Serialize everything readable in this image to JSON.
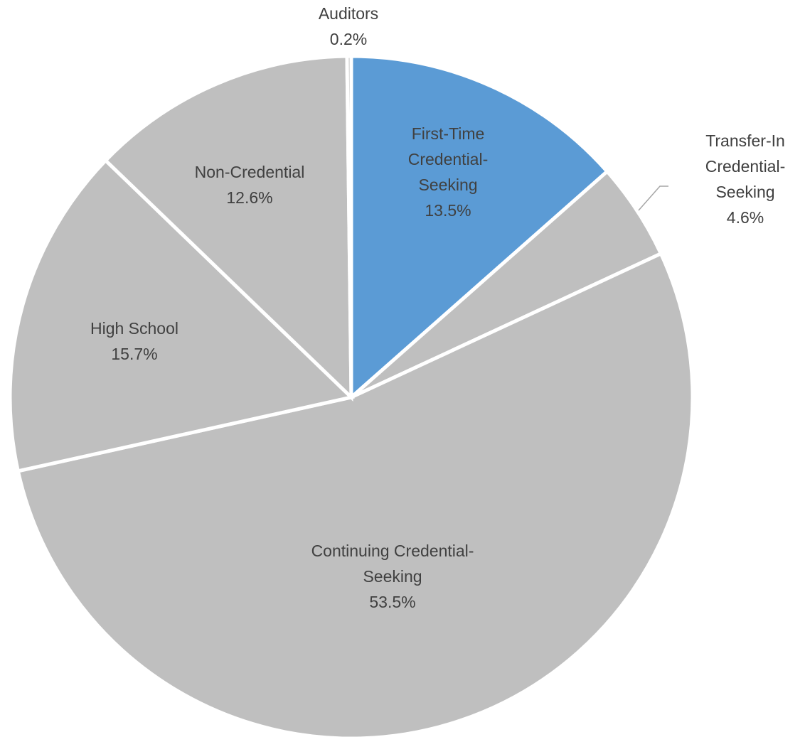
{
  "chart_data": {
    "type": "pie",
    "start": "top",
    "direction": "clockwise",
    "slices": [
      {
        "label": "First-Time Credential-Seeking",
        "value": 13.5,
        "value_label": "13.5%",
        "color": "#5b9bd5"
      },
      {
        "label": "Transfer-In Credential-Seeking",
        "value": 4.6,
        "value_label": "4.6%",
        "color": "#bfbfbf"
      },
      {
        "label": "Continuing Credential-Seeking",
        "value": 53.5,
        "value_label": "53.5%",
        "color": "#bfbfbf"
      },
      {
        "label": "High School",
        "value": 15.7,
        "value_label": "15.7%",
        "color": "#bfbfbf"
      },
      {
        "label": "Non-Credential",
        "value": 12.6,
        "value_label": "12.6%",
        "color": "#bfbfbf"
      },
      {
        "label": "Auditors",
        "value": 0.2,
        "value_label": "0.2%",
        "color": "#bfbfbf"
      }
    ]
  }
}
